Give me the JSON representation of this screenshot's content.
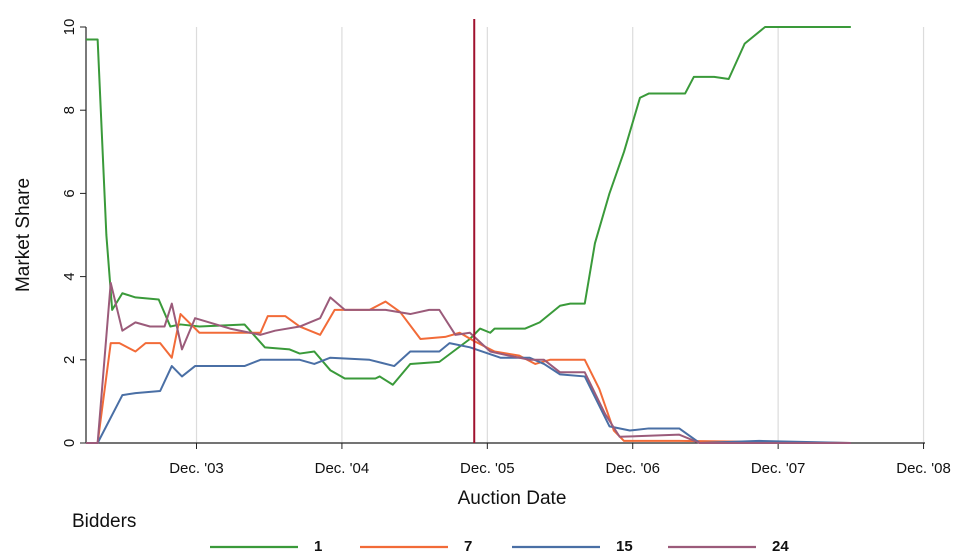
{
  "chart_data": {
    "type": "line",
    "xlabel": "Auction Date",
    "ylabel": "Market Share",
    "legend_title": "Bidders",
    "legend": "bottom",
    "grid": true,
    "xlim": [
      2003.16,
      2008.93
    ],
    "ylim": [
      0,
      10
    ],
    "yticks": [
      0,
      2,
      4,
      6,
      8,
      10
    ],
    "xticks": [
      {
        "value": 2003.92,
        "label": "Dec. '03"
      },
      {
        "value": 2004.92,
        "label": "Dec. '04"
      },
      {
        "value": 2005.92,
        "label": "Dec. '05"
      },
      {
        "value": 2006.92,
        "label": "Dec. '06"
      },
      {
        "value": 2007.92,
        "label": "Dec. '07"
      },
      {
        "value": 2008.92,
        "label": "Dec. '08"
      }
    ],
    "vline": {
      "x": 2005.83,
      "color": "#a0122e"
    },
    "series": [
      {
        "name": "1",
        "color": "#3a9a3a",
        "x": [
          2003.16,
          2003.24,
          2003.3,
          2003.34,
          2003.41,
          2003.5,
          2003.66,
          2003.74,
          2003.81,
          2003.94,
          2004.25,
          2004.39,
          2004.56,
          2004.63,
          2004.73,
          2004.84,
          2004.94,
          2005.15,
          2005.18,
          2005.27,
          2005.39,
          2005.59,
          2005.8,
          2005.87,
          2005.94,
          2005.97,
          2006.18,
          2006.28,
          2006.42,
          2006.49,
          2006.59,
          2006.66,
          2006.76,
          2006.86,
          2006.97,
          2007.03,
          2007.28,
          2007.34,
          2007.48,
          2007.58,
          2007.69,
          2007.83,
          2008.0,
          2008.42
        ],
        "values": [
          9.7,
          9.7,
          5.0,
          3.2,
          3.6,
          3.5,
          3.45,
          2.8,
          2.85,
          2.8,
          2.85,
          2.3,
          2.25,
          2.15,
          2.2,
          1.75,
          1.55,
          1.55,
          1.6,
          1.4,
          1.9,
          1.95,
          2.5,
          2.75,
          2.65,
          2.75,
          2.75,
          2.9,
          3.3,
          3.35,
          3.35,
          4.8,
          6.0,
          7.0,
          8.3,
          8.4,
          8.4,
          8.8,
          8.8,
          8.75,
          9.6,
          10.0,
          10.0,
          10.0
        ]
      },
      {
        "name": "7",
        "color": "#f26b38",
        "x": [
          2003.16,
          2003.24,
          2003.33,
          2003.39,
          2003.5,
          2003.57,
          2003.67,
          2003.75,
          2003.81,
          2003.94,
          2004.36,
          2004.41,
          2004.53,
          2004.63,
          2004.77,
          2004.87,
          2005.11,
          2005.22,
          2005.32,
          2005.46,
          2005.63,
          2005.73,
          2005.83,
          2005.97,
          2006.14,
          2006.25,
          2006.35,
          2006.59,
          2006.69,
          2006.79,
          2006.86,
          2007.24,
          2008.42
        ],
        "values": [
          0,
          0,
          2.4,
          2.4,
          2.2,
          2.4,
          2.4,
          2.05,
          3.1,
          2.65,
          2.65,
          3.05,
          3.05,
          2.8,
          2.6,
          3.2,
          3.2,
          3.4,
          3.15,
          2.5,
          2.55,
          2.65,
          2.45,
          2.2,
          2.1,
          1.9,
          2.0,
          2.0,
          1.3,
          0.3,
          0.05,
          0.05,
          0
        ]
      },
      {
        "name": "15",
        "color": "#4a6fa5",
        "x": [
          2003.16,
          2003.24,
          2003.41,
          2003.5,
          2003.67,
          2003.75,
          2003.82,
          2003.91,
          2004.25,
          2004.36,
          2004.63,
          2004.73,
          2004.84,
          2005.11,
          2005.28,
          2005.39,
          2005.59,
          2005.66,
          2005.8,
          2006.01,
          2006.21,
          2006.31,
          2006.42,
          2006.59,
          2006.76,
          2006.9,
          2007.03,
          2007.24,
          2007.38,
          2007.79,
          2008.42
        ],
        "values": [
          0,
          0,
          1.15,
          1.2,
          1.25,
          1.85,
          1.6,
          1.85,
          1.85,
          2.0,
          2.0,
          1.9,
          2.05,
          2.0,
          1.85,
          2.2,
          2.2,
          2.4,
          2.3,
          2.05,
          2.05,
          1.9,
          1.65,
          1.6,
          0.4,
          0.3,
          0.35,
          0.35,
          0,
          0.05,
          0
        ]
      },
      {
        "name": "24",
        "color": "#9b5b7a",
        "x": [
          2003.16,
          2003.24,
          2003.33,
          2003.41,
          2003.5,
          2003.6,
          2003.7,
          2003.75,
          2003.82,
          2003.91,
          2004.15,
          2004.36,
          2004.46,
          2004.63,
          2004.77,
          2004.84,
          2004.94,
          2005.22,
          2005.39,
          2005.52,
          2005.59,
          2005.7,
          2005.8,
          2005.94,
          2006.07,
          2006.21,
          2006.31,
          2006.42,
          2006.59,
          2006.73,
          2006.83,
          2007.24,
          2007.38,
          2008.42
        ],
        "values": [
          0,
          0,
          3.85,
          2.7,
          2.9,
          2.8,
          2.8,
          3.35,
          2.25,
          3.0,
          2.75,
          2.6,
          2.7,
          2.8,
          3.0,
          3.5,
          3.2,
          3.2,
          3.1,
          3.2,
          3.2,
          2.6,
          2.65,
          2.2,
          2.1,
          2.0,
          2.0,
          1.7,
          1.7,
          0.7,
          0.15,
          0.2,
          0,
          0
        ]
      }
    ]
  }
}
